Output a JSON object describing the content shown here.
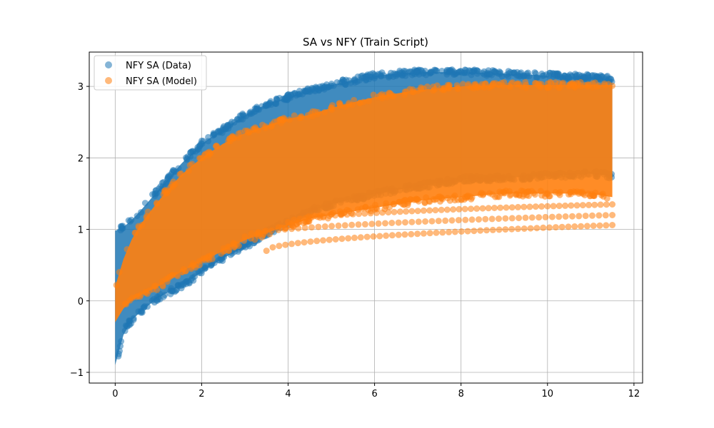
{
  "chart_data": {
    "type": "scatter",
    "title": "SA vs NFY (Train Script)",
    "xlabel": "",
    "ylabel": "",
    "xlim": [
      -0.6,
      12.2
    ],
    "ylim": [
      -1.15,
      3.48
    ],
    "x_ticks": [
      0,
      2,
      4,
      6,
      8,
      10,
      12
    ],
    "y_ticks": [
      -1,
      0,
      1,
      2,
      3
    ],
    "x_tick_labels": [
      "0",
      "2",
      "4",
      "6",
      "8",
      "10",
      "12"
    ],
    "y_tick_labels": [
      "−1",
      "0",
      "1",
      "2",
      "3"
    ],
    "grid": true,
    "legend_position": "top-left",
    "series": [
      {
        "name": "NFY SA (Data)",
        "color": "#1f77b4",
        "alpha": 0.55,
        "band": {
          "x": [
            0,
            0.25,
            0.5,
            1,
            1.5,
            2,
            2.5,
            3,
            3.5,
            4,
            4.5,
            5,
            6,
            7,
            8,
            9,
            10,
            11,
            11.5
          ],
          "upper": [
            0.98,
            1.05,
            1.2,
            1.55,
            1.9,
            2.2,
            2.4,
            2.6,
            2.75,
            2.85,
            2.95,
            3.02,
            3.15,
            3.2,
            3.2,
            3.18,
            3.15,
            3.13,
            3.1
          ],
          "lower": [
            -0.9,
            -0.35,
            -0.2,
            0.05,
            0.2,
            0.4,
            0.6,
            0.75,
            0.95,
            1.1,
            1.25,
            1.35,
            1.5,
            1.6,
            1.7,
            1.72,
            1.75,
            1.78,
            1.75
          ]
        }
      },
      {
        "name": "NFY SA (Model)",
        "color": "#ff7f0e",
        "alpha": 0.55,
        "band": {
          "x": [
            0,
            0.25,
            0.5,
            1,
            1.5,
            2,
            2.5,
            3,
            3.5,
            4,
            4.5,
            5,
            6,
            7,
            8,
            9,
            10,
            11,
            11.5
          ],
          "upper": [
            0.2,
            0.7,
            1.0,
            1.4,
            1.75,
            2.0,
            2.2,
            2.35,
            2.45,
            2.55,
            2.6,
            2.7,
            2.85,
            2.95,
            3.0,
            3.02,
            3.02,
            3.02,
            3.02
          ],
          "lower": [
            -0.3,
            -0.05,
            0.05,
            0.2,
            0.4,
            0.55,
            0.7,
            0.85,
            0.95,
            1.05,
            1.15,
            1.2,
            1.3,
            1.4,
            1.45,
            1.5,
            1.5,
            1.5,
            1.45
          ]
        },
        "low_curves": [
          {
            "x_start": 3.5,
            "x_end": 11.5,
            "y_start": 0.7,
            "y_end": 1.06
          },
          {
            "x_start": 3.0,
            "x_end": 11.5,
            "y_start": 0.9,
            "y_end": 1.2
          },
          {
            "x_start": 4.0,
            "x_end": 11.5,
            "y_start": 1.1,
            "y_end": 1.35
          }
        ]
      }
    ]
  }
}
